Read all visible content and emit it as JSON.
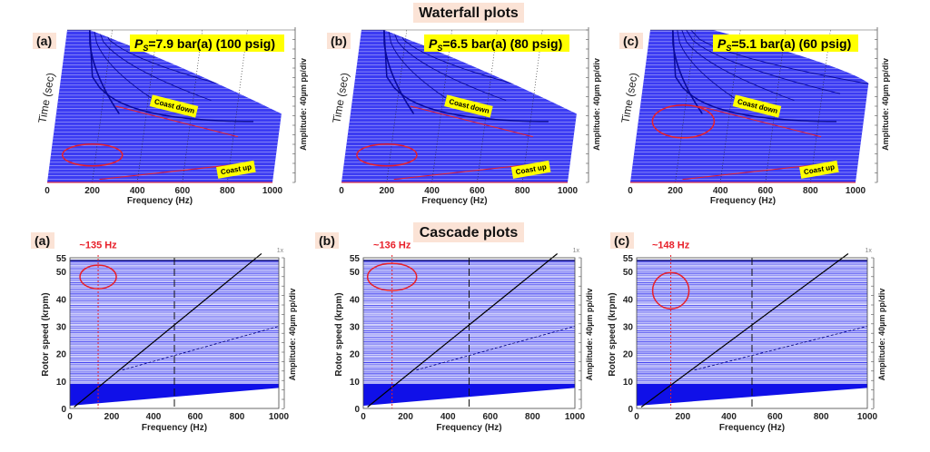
{
  "titles": {
    "waterfall": "Waterfall plots",
    "cascade": "Cascade plots"
  },
  "colors": {
    "trace": "#2a2af0",
    "title_bg": "#fbe3d6",
    "label_bg": "#fbe3d6",
    "highlight": "#ffff00",
    "annotation": "#e8202a"
  },
  "waterfall": [
    {
      "label": "(a)",
      "ps_main": "P",
      "ps_sub": "S",
      "ps_rest": "=7.9 bar(a) (100 psig)",
      "coast_down": "Coast down",
      "coast_up": "Coast up"
    },
    {
      "label": "(b)",
      "ps_main": "P",
      "ps_sub": "S",
      "ps_rest": "=6.5 bar(a) (80 psig)",
      "coast_down": "Coast down",
      "coast_up": "Coast up"
    },
    {
      "label": "(c)",
      "ps_main": "P",
      "ps_sub": "S",
      "ps_rest": "=5.1 bar(a) (60 psig)",
      "coast_down": "Coast down",
      "coast_up": "Coast up"
    }
  ],
  "cascade": [
    {
      "label": "(a)",
      "annotation": "~135 Hz",
      "freq_hz": 135,
      "sync_label": "1x"
    },
    {
      "label": "(b)",
      "annotation": "~136 Hz",
      "freq_hz": 136,
      "sync_label": "1x"
    },
    {
      "label": "(c)",
      "annotation": "~148 Hz",
      "freq_hz": 148,
      "sync_label": "1x"
    }
  ],
  "chart_data": [
    {
      "type": "line",
      "title": "Waterfall plots",
      "xlabel": "Frequency (Hz)",
      "ylabel": "Time (sec)",
      "y2label": "Amplitude:  40µm pp/div",
      "xlim": [
        0,
        1000
      ],
      "xticks": [
        "0",
        "200",
        "400",
        "600",
        "800",
        "1000"
      ],
      "panels": [
        "(a)",
        "(b)",
        "(c)"
      ]
    },
    {
      "type": "line",
      "title": "Cascade plots",
      "xlabel": "Frequency (Hz)",
      "ylabel": "Rotor speed (krpm)",
      "y2label": "Amplitude:  40µm pp/div",
      "xlim": [
        0,
        1000
      ],
      "ylim": [
        0,
        55
      ],
      "xticks": [
        "0",
        "200",
        "400",
        "600",
        "800",
        "1000"
      ],
      "yticks": [
        "0",
        "10",
        "20",
        "30",
        "40",
        "50",
        "55"
      ],
      "panels": [
        "(a)",
        "(b)",
        "(c)"
      ],
      "subsynchronous_hz": [
        135,
        136,
        148
      ]
    }
  ]
}
